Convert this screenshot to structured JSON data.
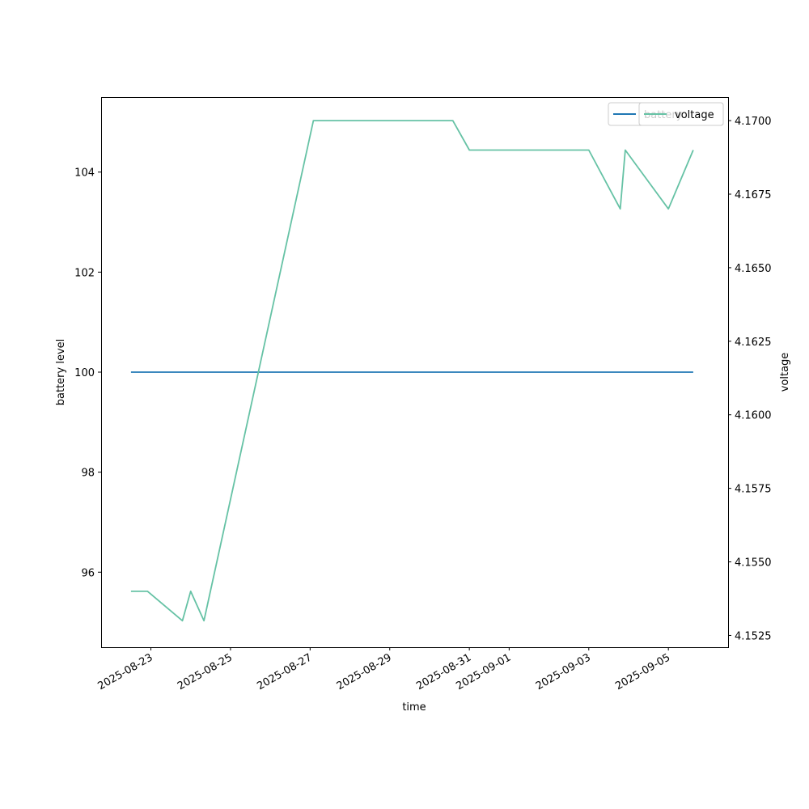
{
  "chart_data": {
    "type": "line",
    "xlabel": "time",
    "ylabel_left": "battery level",
    "ylabel_right": "voltage",
    "x_axis": {
      "type": "date",
      "range": [
        "2025-08-21T18:00",
        "2025-09-06T12:00"
      ],
      "tick_labels": [
        "2025-08-23",
        "2025-08-25",
        "2025-08-27",
        "2025-08-29",
        "2025-08-31",
        "2025-09-01",
        "2025-09-03",
        "2025-09-05"
      ]
    },
    "y_left": {
      "range": [
        94.5,
        105.5
      ],
      "tick_labels": [
        "96",
        "98",
        "100",
        "102",
        "104"
      ]
    },
    "y_right": {
      "range": [
        4.1521,
        4.1708
      ],
      "tick_labels": [
        "4.1525",
        "4.1550",
        "4.1575",
        "4.1600",
        "4.1625",
        "4.1650",
        "4.1675",
        "4.1700"
      ]
    },
    "legend_placement": "top-right",
    "series": [
      {
        "name": "battery",
        "axis": "left",
        "color": "#1f77b4",
        "points": [
          {
            "x": "2025-08-22T12:00",
            "y": 100
          },
          {
            "x": "2025-09-05T15:00",
            "y": 100
          }
        ]
      },
      {
        "name": "voltage",
        "axis": "right",
        "color": "#66c2a5",
        "points": [
          {
            "x": "2025-08-22T12:00",
            "y": 4.154
          },
          {
            "x": "2025-08-22T22:00",
            "y": 4.154
          },
          {
            "x": "2025-08-23T19:00",
            "y": 4.153
          },
          {
            "x": "2025-08-24T00:00",
            "y": 4.154
          },
          {
            "x": "2025-08-24T08:00",
            "y": 4.153
          },
          {
            "x": "2025-08-27T02:00",
            "y": 4.17
          },
          {
            "x": "2025-08-30T14:00",
            "y": 4.17
          },
          {
            "x": "2025-08-31T00:00",
            "y": 4.169
          },
          {
            "x": "2025-09-03T00:00",
            "y": 4.169
          },
          {
            "x": "2025-09-03T19:00",
            "y": 4.167
          },
          {
            "x": "2025-09-03T22:00",
            "y": 4.169
          },
          {
            "x": "2025-09-05T00:00",
            "y": 4.167
          },
          {
            "x": "2025-09-05T15:00",
            "y": 4.169
          }
        ]
      }
    ]
  }
}
